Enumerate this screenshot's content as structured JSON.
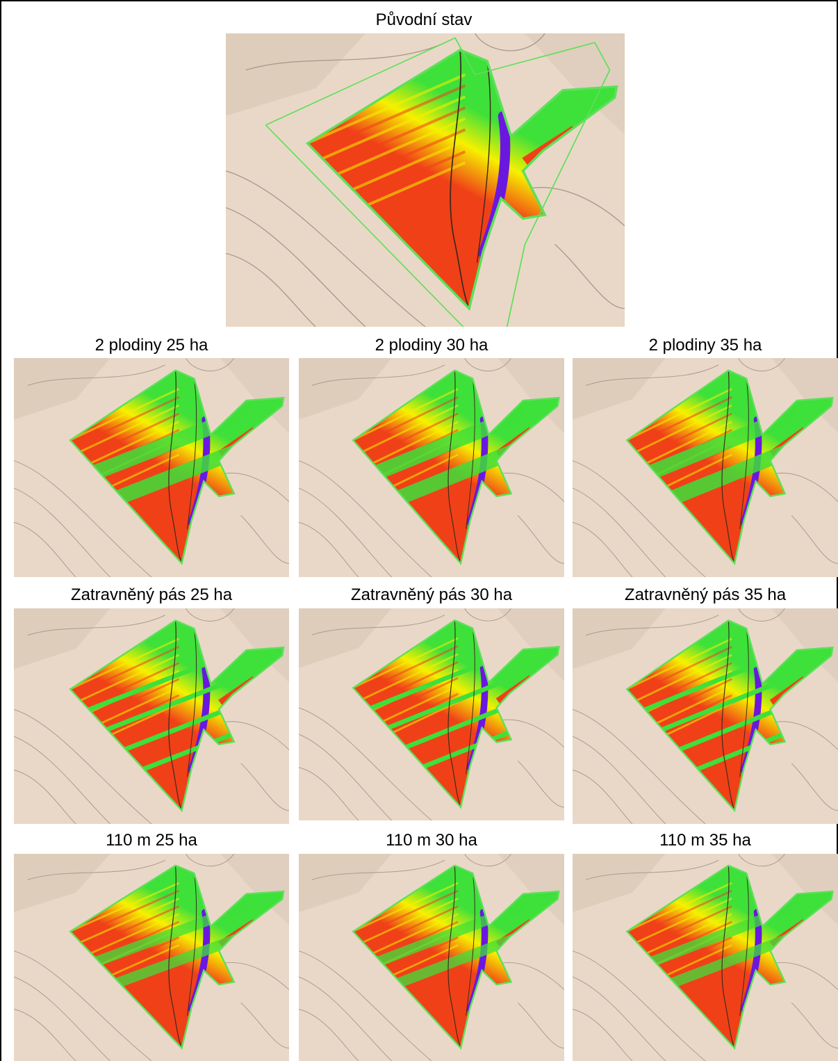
{
  "panels": [
    {
      "id": "original",
      "title": "Původní stav",
      "variant": "original"
    },
    {
      "id": "crops2-25",
      "title": "2 plodiny 25 ha",
      "variant": "crops2"
    },
    {
      "id": "crops2-30",
      "title": "2 plodiny 30 ha",
      "variant": "crops2"
    },
    {
      "id": "crops2-35",
      "title": "2 plodiny 35 ha",
      "variant": "crops2"
    },
    {
      "id": "grass-25",
      "title": "Zatravněný pás 25 ha",
      "variant": "grass"
    },
    {
      "id": "grass-30",
      "title": "Zatravněný pás 30 ha",
      "variant": "grass"
    },
    {
      "id": "grass-35",
      "title": "Zatravněný pás 35 ha",
      "variant": "grass"
    },
    {
      "id": "m110-25",
      "title": "110 m 25 ha",
      "variant": "m110"
    },
    {
      "id": "m110-30",
      "title": "110 m 30 ha",
      "variant": "m110"
    },
    {
      "id": "m110-35",
      "title": "110 m 35 ha",
      "variant": "m110"
    }
  ],
  "colors": {
    "terrain": "#e9d8c7",
    "terrain_shade": "#cdbba8",
    "contour": "#a79a8e",
    "low": "#3ee03a",
    "mid": "#f6f000",
    "high": "#f04018",
    "peak": "#6a18e0",
    "boundary": "#5de05a"
  }
}
